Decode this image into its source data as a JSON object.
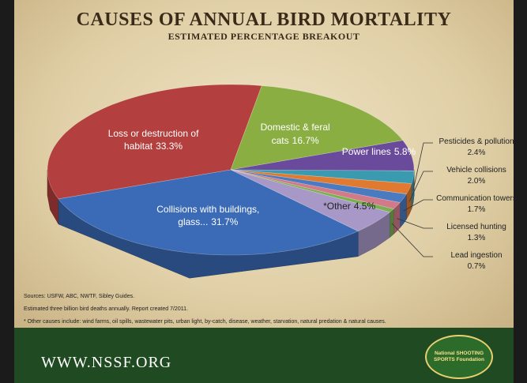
{
  "chart_data": {
    "type": "pie3d",
    "title": "CAUSES OF ANNUAL BIRD MORTALITY",
    "subtitle": "ESTIMATED PERCENTAGE BREAKOUT",
    "categories": [
      "Loss or destruction of habitat",
      "Domestic & feral cats",
      "Power lines",
      "Pesticides & pollution",
      "Vehicle collisions",
      "Communication towers",
      "Licensed hunting",
      "Lead ingestion",
      "*Other",
      "Collisions with buildings, glass..."
    ],
    "values": [
      33.3,
      16.7,
      5.8,
      2.4,
      2.0,
      1.7,
      1.3,
      0.7,
      4.5,
      31.7
    ],
    "value_labels": [
      "33.3%",
      "16.7%",
      "5.8%",
      "2.4%",
      "2.0%",
      "1.7%",
      "1.3%",
      "0.7%",
      "4.5%",
      "31.7%"
    ],
    "colors": [
      "#b3403e",
      "#8aae42",
      "#6a4a9a",
      "#3a9ab0",
      "#e07a30",
      "#4a7ac0",
      "#d07a8a",
      "#7ab050",
      "#a898c8",
      "#3b6bb6"
    ],
    "notes": [
      "Sources: USFW, ABC, NWTF, Sibley Guides.",
      "Estimated three billion bird deaths annually. Report created 7/2011.",
      "* Other causes include: wind farms, oil spills, wastewater pits, urban light, by-catch, disease, weather, starvation, natural predation & natural causes."
    ]
  },
  "footer": {
    "url": "WWW.NSSF.ORG",
    "logo": "National SHOOTING SPORTS Foundation"
  }
}
